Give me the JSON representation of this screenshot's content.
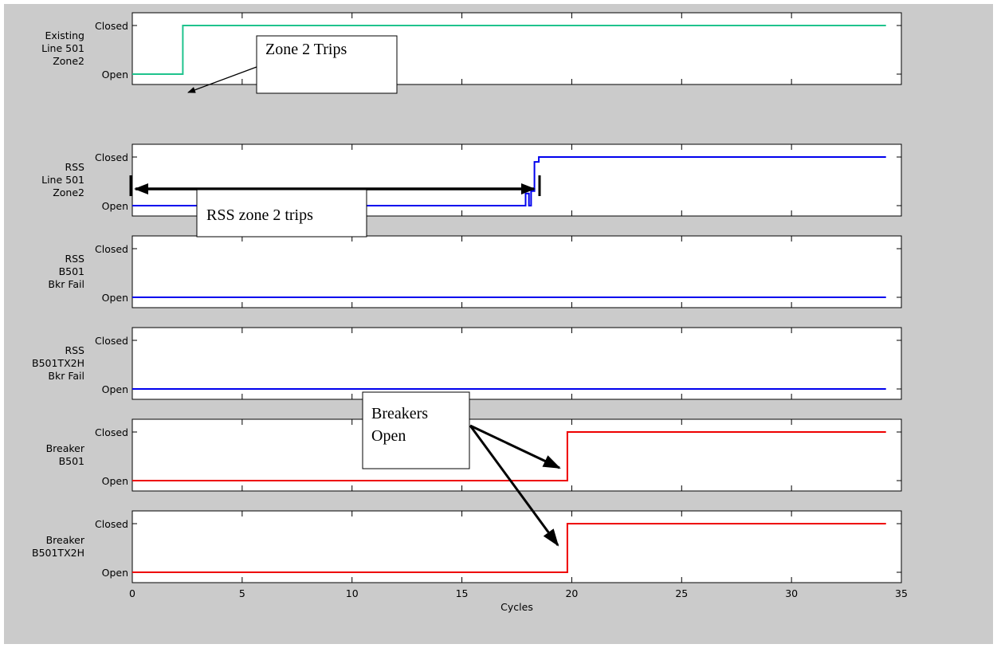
{
  "chart_data": {
    "type": "line",
    "subtype": "step",
    "xlabel": "Cycles",
    "xlim": [
      0,
      35
    ],
    "xticks": [
      0,
      5,
      10,
      15,
      20,
      25,
      30,
      35
    ],
    "x_tick_labels": [
      "0",
      "5",
      "10",
      "15",
      "20",
      "25",
      "30",
      "35"
    ],
    "y_tick_labels": [
      "Open",
      "Closed"
    ],
    "grid": false,
    "colors": {
      "green": "#1fc38d",
      "blue": "#0000ee",
      "red": "#ee0000",
      "background": "#cbcbcb",
      "axes": "#ffffff"
    },
    "panels": [
      {
        "row_label": [
          "Existing",
          "Line 501",
          "Zone2"
        ],
        "color": "green",
        "points": [
          [
            0,
            0
          ],
          [
            2.3,
            0
          ],
          [
            2.3,
            1
          ],
          [
            34.3,
            1
          ]
        ]
      },
      {
        "row_label": [
          "RSS",
          "Line 501",
          "Zone2"
        ],
        "color": "blue",
        "points": [
          [
            0,
            0
          ],
          [
            17.9,
            0
          ],
          [
            17.9,
            0.25
          ],
          [
            18.05,
            0.25
          ],
          [
            18.05,
            0
          ],
          [
            18.15,
            0
          ],
          [
            18.15,
            0.3
          ],
          [
            18.3,
            0.3
          ],
          [
            18.3,
            0.9
          ],
          [
            18.5,
            0.9
          ],
          [
            18.5,
            1
          ],
          [
            34.3,
            1
          ]
        ]
      },
      {
        "row_label": [
          "RSS",
          "B501",
          "Bkr Fail"
        ],
        "color": "blue",
        "points": [
          [
            0,
            0
          ],
          [
            34.3,
            0
          ]
        ]
      },
      {
        "row_label": [
          "RSS",
          "B501TX2H",
          "Bkr Fail"
        ],
        "color": "blue",
        "points": [
          [
            0,
            0
          ],
          [
            34.3,
            0
          ]
        ]
      },
      {
        "row_label": [
          "Breaker",
          "B501"
        ],
        "color": "red",
        "points": [
          [
            0,
            0
          ],
          [
            19.8,
            0
          ],
          [
            19.8,
            1
          ],
          [
            34.3,
            1
          ]
        ]
      },
      {
        "row_label": [
          "Breaker",
          "B501TX2H"
        ],
        "color": "red",
        "points": [
          [
            0,
            0
          ],
          [
            19.8,
            0
          ],
          [
            19.8,
            1
          ],
          [
            34.3,
            1
          ]
        ]
      }
    ],
    "annotations": [
      {
        "lines": [
          "Zone 2 Trips"
        ]
      },
      {
        "lines": [
          "RSS zone 2 trips"
        ]
      },
      {
        "lines": [
          "Breakers",
          "Open"
        ]
      }
    ]
  }
}
